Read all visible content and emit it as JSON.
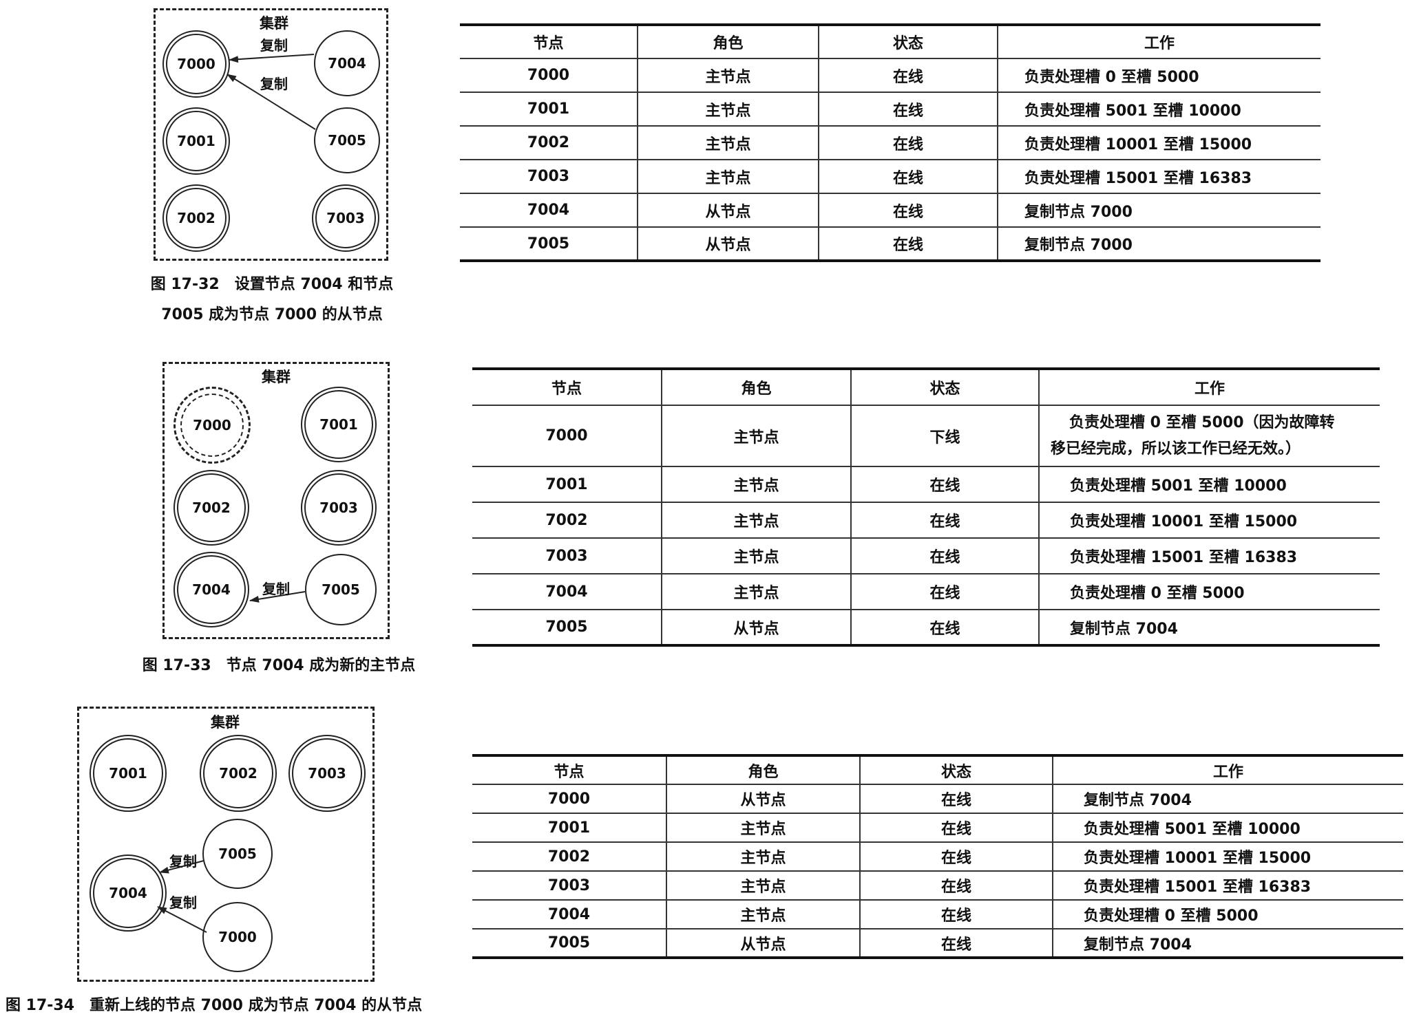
{
  "headers": [
    "节点",
    "角色",
    "状态",
    "工作"
  ],
  "arrow_label": "复制",
  "fig1": {
    "cluster_label": "集群",
    "nodes": [
      "7000",
      "7004",
      "7001",
      "7005",
      "7002",
      "7003"
    ],
    "caption_line1": "图 17-32　设置节点 7004 和节点",
    "caption_line2": "7005 成为节点 7000 的从节点",
    "rows": [
      [
        "7000",
        "主节点",
        "在线",
        "负责处理槽 0 至槽 5000"
      ],
      [
        "7001",
        "主节点",
        "在线",
        "负责处理槽 5001 至槽 10000"
      ],
      [
        "7002",
        "主节点",
        "在线",
        "负责处理槽 10001 至槽 15000"
      ],
      [
        "7003",
        "主节点",
        "在线",
        "负责处理槽 15001 至槽 16383"
      ],
      [
        "7004",
        "从节点",
        "在线",
        "复制节点 7000"
      ],
      [
        "7005",
        "从节点",
        "在线",
        "复制节点 7000"
      ]
    ]
  },
  "fig2": {
    "cluster_label": "集群",
    "nodes": [
      "7000",
      "7001",
      "7002",
      "7003",
      "7004",
      "7005"
    ],
    "caption": "图 17-33　节点 7004 成为新的主节点",
    "row0_work_line1": "负责处理槽 0 至槽 5000（因为故障转",
    "row0_work_line2": "移已经完成，所以该工作已经无效。）",
    "rows": [
      [
        "7000",
        "主节点",
        "下线",
        ""
      ],
      [
        "7001",
        "主节点",
        "在线",
        "负责处理槽 5001 至槽 10000"
      ],
      [
        "7002",
        "主节点",
        "在线",
        "负责处理槽 10001 至槽 15000"
      ],
      [
        "7003",
        "主节点",
        "在线",
        "负责处理槽 15001 至槽 16383"
      ],
      [
        "7004",
        "主节点",
        "在线",
        "负责处理槽 0 至槽 5000"
      ],
      [
        "7005",
        "从节点",
        "在线",
        "复制节点 7004"
      ]
    ]
  },
  "fig3": {
    "cluster_label": "集群",
    "nodes": [
      "7001",
      "7002",
      "7003",
      "7005",
      "7004",
      "7000"
    ],
    "caption": "图 17-34　重新上线的节点 7000 成为节点 7004 的从节点",
    "rows": [
      [
        "7000",
        "从节点",
        "在线",
        "复制节点 7004"
      ],
      [
        "7001",
        "主节点",
        "在线",
        "负责处理槽 5001 至槽 10000"
      ],
      [
        "7002",
        "主节点",
        "在线",
        "负责处理槽 10001 至槽 15000"
      ],
      [
        "7003",
        "主节点",
        "在线",
        "负责处理槽 15001 至槽 16383"
      ],
      [
        "7004",
        "主节点",
        "在线",
        "负责处理槽 0 至槽 5000"
      ],
      [
        "7005",
        "从节点",
        "在线",
        "复制节点 7004"
      ]
    ]
  }
}
